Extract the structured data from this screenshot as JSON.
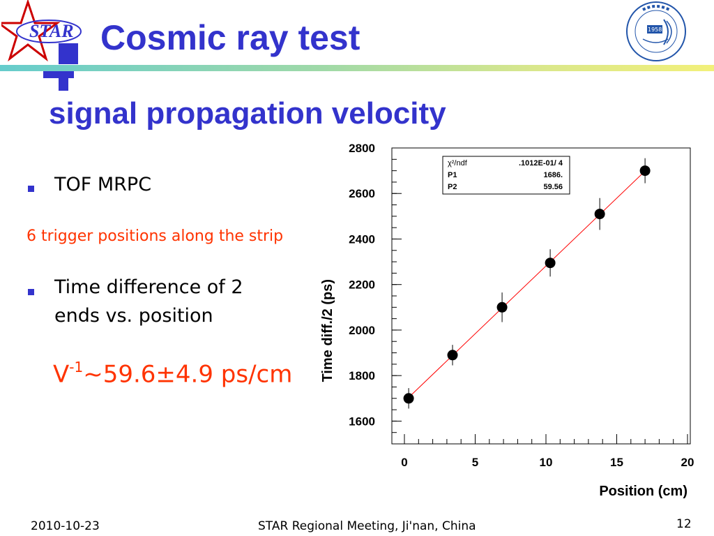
{
  "header": {
    "title": "Cosmic ray test",
    "subtitle": "signal propagation velocity",
    "star_logo_text": "STAR",
    "ustc_logo_year": "1958",
    "accent_color": "#3333cc"
  },
  "content": {
    "bullet1": "TOF MRPC",
    "note": "6 trigger positions along the strip",
    "bullet2_line1": "Time difference of 2",
    "bullet2_line2": "ends vs. position",
    "velocity_prefix": "V",
    "velocity_exp": "-1",
    "velocity_value": "~59.6±4.9 ps/cm"
  },
  "footer": {
    "date": "2010-10-23",
    "meeting": "STAR Regional Meeting, Ji'nan, China",
    "page": "12"
  },
  "chart_data": {
    "type": "scatter",
    "xlabel": "Position (cm)",
    "ylabel": "Time diff./2 (ps)",
    "xlim": [
      0,
      20
    ],
    "ylim": [
      1500,
      2800
    ],
    "x_ticks": [
      "0",
      "5",
      "10",
      "15",
      "20"
    ],
    "y_ticks": [
      "1600",
      "1800",
      "2000",
      "2200",
      "2400",
      "2600",
      "2800"
    ],
    "points": [
      {
        "x": 0.3,
        "y": 1700,
        "err": 45
      },
      {
        "x": 3.4,
        "y": 1890,
        "err": 45
      },
      {
        "x": 6.9,
        "y": 2100,
        "err": 65
      },
      {
        "x": 10.3,
        "y": 2295,
        "err": 60
      },
      {
        "x": 13.8,
        "y": 2510,
        "err": 70
      },
      {
        "x": 17.0,
        "y": 2700,
        "err": 55
      }
    ],
    "fit": {
      "type": "linear",
      "p1": 1686,
      "p2": 59.56,
      "color": "#ff0000"
    },
    "stats": {
      "chi2_label": "χ²/ndf",
      "chi2_value": ".1012E-01/    4",
      "p1_label": "P1",
      "p1_value": "1686.",
      "p2_label": "P2",
      "p2_value": "59.56"
    }
  }
}
